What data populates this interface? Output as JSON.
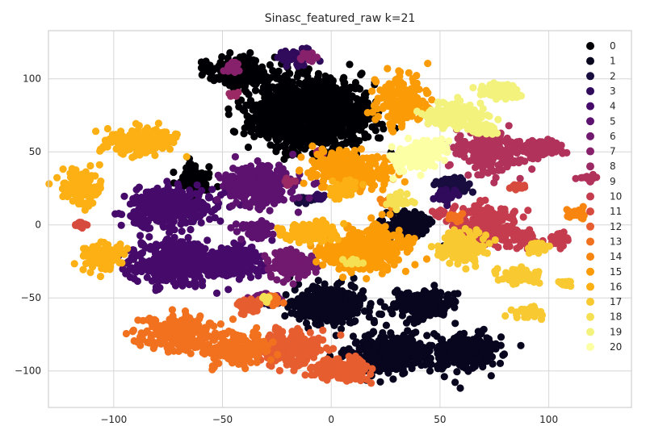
{
  "chart_data": {
    "type": "scatter",
    "title": "Sinasc_featured_raw k=21",
    "xlabel": "",
    "ylabel": "",
    "xlim": [
      -130,
      138
    ],
    "ylim": [
      -125,
      133
    ],
    "xticks": [
      -100,
      -50,
      0,
      50,
      100
    ],
    "yticks": [
      -100,
      -50,
      0,
      50,
      100
    ],
    "grid": true,
    "legend_position": "right",
    "series": [
      {
        "name": "0",
        "color": "#000004",
        "clusters": [
          [
            -23,
            77,
            15,
            22,
            500
          ],
          [
            0,
            75,
            18,
            22,
            550
          ],
          [
            -43,
            105,
            15,
            10,
            200
          ],
          [
            -63,
            30,
            6,
            12,
            120
          ]
        ]
      },
      {
        "name": "1",
        "color": "#08051e",
        "clusters": [
          [
            -1,
            -55,
            16,
            12,
            350
          ],
          [
            25,
            -88,
            16,
            12,
            350
          ],
          [
            60,
            -87,
            15,
            11,
            300
          ],
          [
            42,
            -55,
            12,
            10,
            200
          ],
          [
            35,
            0,
            10,
            8,
            120
          ]
        ]
      },
      {
        "name": "2",
        "color": "#190c3e",
        "clusters": [
          [
            57,
            27,
            7,
            5,
            80
          ],
          [
            -12,
            17,
            4,
            3,
            25
          ],
          [
            -28,
            -52,
            4,
            3,
            25
          ]
        ]
      },
      {
        "name": "3",
        "color": "#300a5b",
        "clusters": [
          [
            -15,
            115,
            7,
            4,
            60
          ],
          [
            52,
            20,
            5,
            4,
            30
          ],
          [
            -5,
            19,
            3,
            2,
            15
          ]
        ]
      },
      {
        "name": "4",
        "color": "#460b6a",
        "clusters": [
          [
            -73,
            -25,
            18,
            14,
            380
          ],
          [
            -75,
            12,
            18,
            12,
            350
          ],
          [
            -45,
            -25,
            12,
            10,
            180
          ],
          [
            -80,
            15,
            8,
            6,
            80
          ]
        ]
      },
      {
        "name": "5",
        "color": "#5c126e",
        "clusters": [
          [
            -33,
            27,
            14,
            12,
            320
          ],
          [
            -35,
            -3,
            7,
            5,
            60
          ]
        ]
      },
      {
        "name": "6",
        "color": "#71196e",
        "clusters": [
          [
            -18,
            -27,
            10,
            8,
            150
          ],
          [
            -30,
            -50,
            5,
            3,
            40
          ]
        ]
      },
      {
        "name": "7",
        "color": "#87216b",
        "clusters": [
          [
            -45,
            108,
            3,
            3,
            25
          ],
          [
            -10,
            115,
            3,
            3,
            20
          ]
        ]
      },
      {
        "name": "8",
        "color": "#9b2964",
        "clusters": [
          [
            -45,
            89,
            2,
            2,
            8
          ],
          [
            -5,
            50,
            2,
            2,
            10
          ],
          [
            -20,
            30,
            2,
            2,
            10
          ]
        ]
      },
      {
        "name": "9",
        "color": "#b1325a",
        "clusters": [
          [
            73,
            50,
            15,
            12,
            220
          ],
          [
            95,
            52,
            10,
            5,
            100
          ],
          [
            118,
            32,
            4,
            2,
            12
          ]
        ]
      },
      {
        "name": "10",
        "color": "#c43c4e",
        "clusters": [
          [
            72,
            0,
            13,
            12,
            220
          ],
          [
            88,
            -10,
            7,
            6,
            60
          ],
          [
            50,
            8,
            3,
            2,
            20
          ],
          [
            105,
            -10,
            4,
            4,
            30
          ]
        ]
      },
      {
        "name": "11",
        "color": "#d74b3f",
        "clusters": [
          [
            -115,
            0,
            2,
            2,
            20
          ],
          [
            86,
            26,
            3,
            2,
            15
          ]
        ]
      },
      {
        "name": "12",
        "color": "#e65d2f",
        "clusters": [
          [
            -20,
            -85,
            14,
            10,
            250
          ],
          [
            5,
            -99,
            11,
            7,
            200
          ],
          [
            -38,
            -55,
            5,
            4,
            50
          ]
        ]
      },
      {
        "name": "13",
        "color": "#f1711f",
        "clusters": [
          [
            -70,
            -75,
            16,
            10,
            260
          ],
          [
            -43,
            -85,
            13,
            10,
            200
          ],
          [
            -27,
            -52,
            4,
            3,
            30
          ],
          [
            57,
            5,
            4,
            3,
            20
          ]
        ]
      },
      {
        "name": "14",
        "color": "#f8850f",
        "clusters": [
          [
            112,
            8,
            4,
            3,
            30
          ],
          [
            27,
            17,
            4,
            3,
            20
          ]
        ]
      },
      {
        "name": "15",
        "color": "#fb9b06",
        "clusters": [
          [
            8,
            38,
            16,
            12,
            300
          ],
          [
            20,
            -15,
            15,
            12,
            300
          ],
          [
            32,
            85,
            10,
            14,
            220
          ],
          [
            13,
            -25,
            8,
            8,
            100
          ],
          [
            2,
            -20,
            8,
            6,
            80
          ]
        ]
      },
      {
        "name": "16",
        "color": "#fcb014",
        "clusters": [
          [
            -88,
            57,
            15,
            8,
            200
          ],
          [
            -115,
            25,
            8,
            10,
            140
          ],
          [
            -105,
            -22,
            8,
            8,
            130
          ],
          [
            -10,
            -5,
            12,
            6,
            120
          ],
          [
            5,
            25,
            6,
            5,
            60
          ]
        ]
      },
      {
        "name": "17",
        "color": "#f9c932",
        "clusters": [
          [
            60,
            -15,
            10,
            10,
            130
          ],
          [
            87,
            -35,
            9,
            5,
            80
          ],
          [
            90,
            -60,
            6,
            3,
            50
          ],
          [
            108,
            -40,
            3,
            2,
            20
          ],
          [
            95,
            -15,
            5,
            4,
            30
          ]
        ]
      },
      {
        "name": "18",
        "color": "#f5e053",
        "clusters": [
          [
            30,
            17,
            5,
            4,
            40
          ],
          [
            10,
            -25,
            3,
            2,
            15
          ],
          [
            -30,
            -50,
            3,
            2,
            10
          ]
        ]
      },
      {
        "name": "19",
        "color": "#f2f27d",
        "clusters": [
          [
            57,
            75,
            12,
            8,
            150
          ],
          [
            78,
            92,
            8,
            5,
            90
          ],
          [
            70,
            65,
            5,
            4,
            40
          ]
        ]
      },
      {
        "name": "20",
        "color": "#fcffa4",
        "clusters": [
          [
            38,
            47,
            10,
            8,
            140
          ],
          [
            48,
            52,
            5,
            5,
            50
          ]
        ]
      }
    ]
  }
}
